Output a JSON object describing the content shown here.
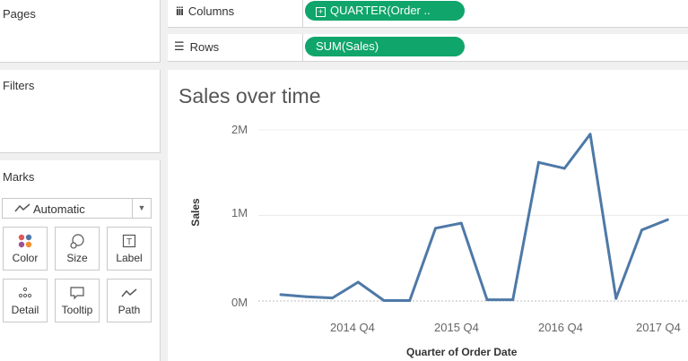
{
  "sidebar": {
    "pages_title": "Pages",
    "filters_title": "Filters",
    "marks_title": "Marks",
    "mark_type": "Automatic",
    "mark_buttons": [
      {
        "label": "Color",
        "icon": "color-dots-icon"
      },
      {
        "label": "Size",
        "icon": "size-icon"
      },
      {
        "label": "Label",
        "icon": "label-icon"
      },
      {
        "label": "Detail",
        "icon": "detail-dots-icon"
      },
      {
        "label": "Tooltip",
        "icon": "tooltip-icon"
      },
      {
        "label": "Path",
        "icon": "path-icon"
      }
    ]
  },
  "shelves": {
    "columns_label": "Columns",
    "columns_pill": "QUARTER(Order ..",
    "rows_label": "Rows",
    "rows_pill": "SUM(Sales)"
  },
  "colors": {
    "pill": "#10a56a",
    "line": "#4e79a7"
  },
  "chart_data": {
    "type": "line",
    "title": "Sales over time",
    "xlabel": "Quarter of Order Date",
    "ylabel": "Sales",
    "y_ticks": [
      "2M",
      "1M",
      "0M"
    ],
    "x_ticks": [
      "2014 Q4",
      "2015 Q4",
      "2016 Q4",
      "2017 Q4"
    ],
    "ylim": [
      0,
      2000000
    ],
    "series": [
      {
        "x": [
          "2014 Q1",
          "2014 Q2",
          "2014 Q3",
          "2014 Q4",
          "2015 Q1",
          "2015 Q2",
          "2015 Q3",
          "2015 Q4",
          "2016 Q1",
          "2016 Q2",
          "2016 Q3",
          "2016 Q4",
          "2017 Q1",
          "2017 Q2",
          "2017 Q3",
          "2017 Q4"
        ],
        "values": [
          75000,
          50000,
          35000,
          220000,
          5000,
          5000,
          850000,
          910000,
          15000,
          15000,
          1620000,
          1550000,
          1950000,
          30000,
          830000,
          950000
        ]
      }
    ],
    "grid": true
  }
}
